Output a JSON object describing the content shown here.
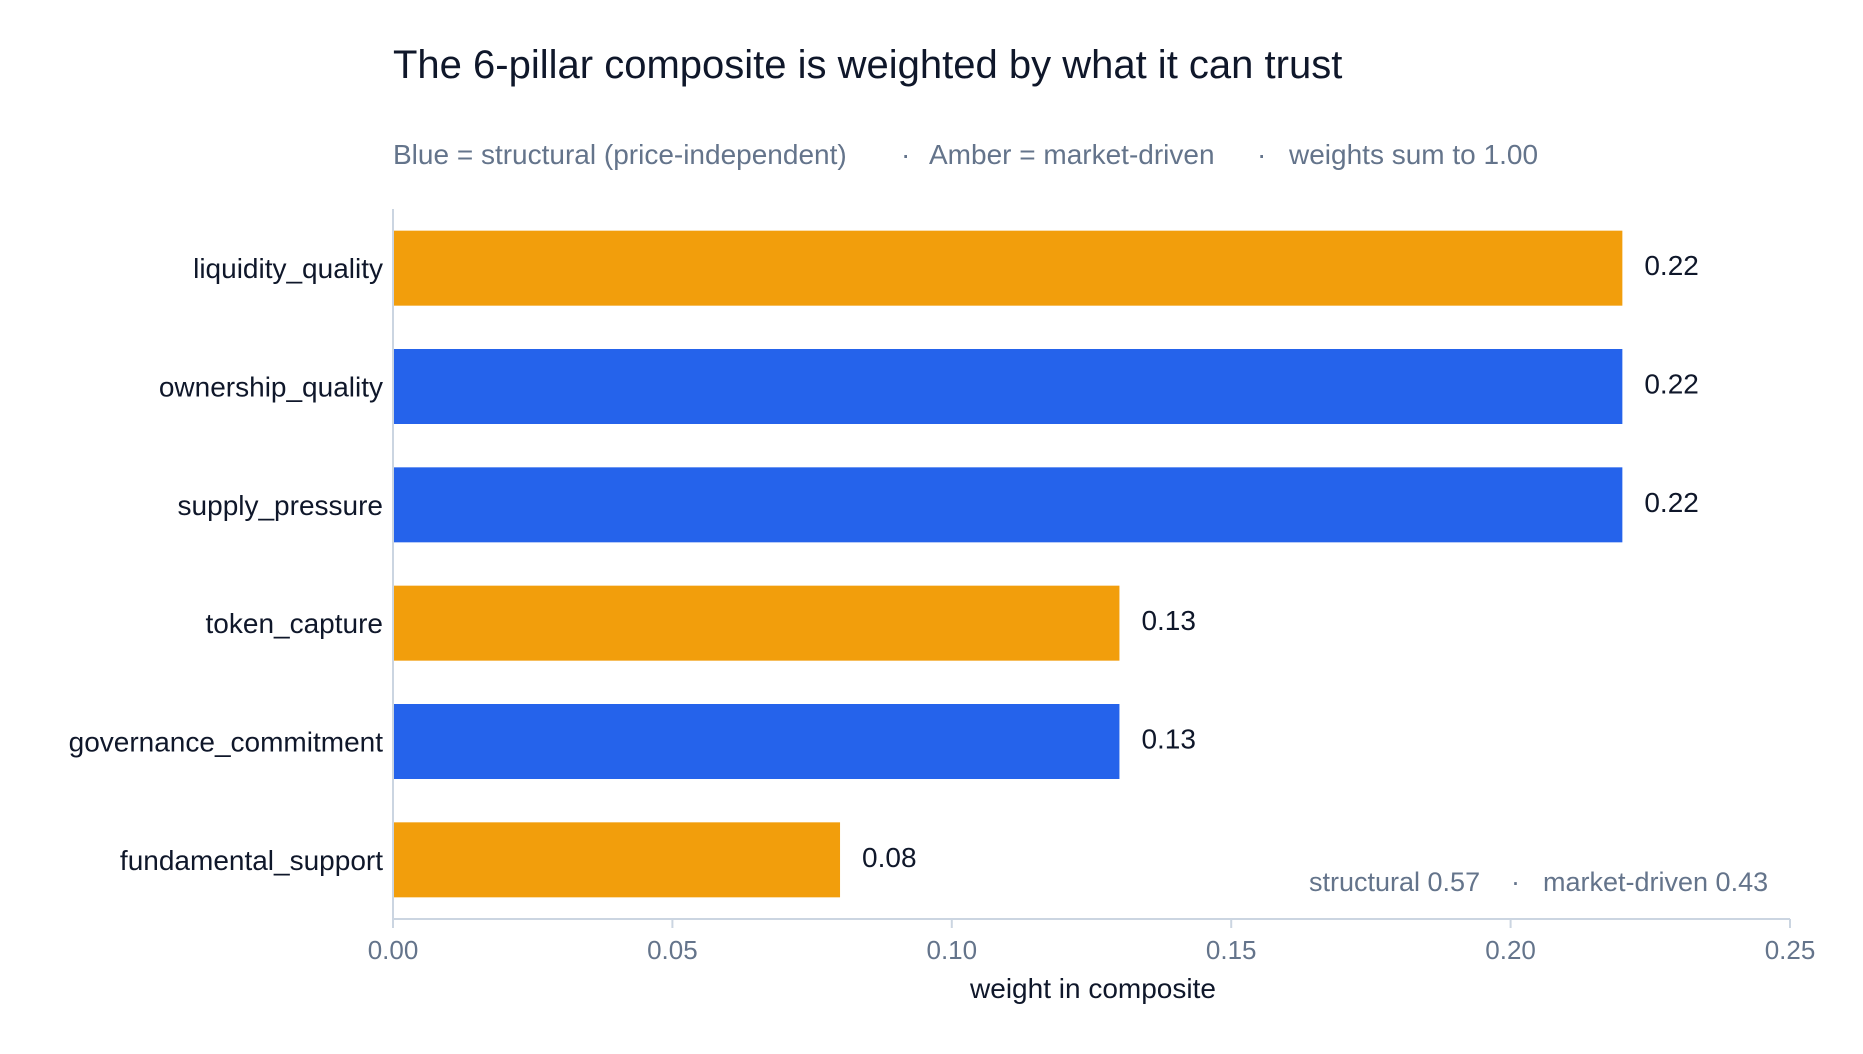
{
  "chart_data": {
    "type": "bar",
    "orientation": "horizontal",
    "title": "The 6-pillar composite is weighted by what it can trust",
    "subtitle": {
      "parts": [
        "Blue = structural (price-independent)",
        "Amber = market-driven",
        "weights sum to 1.00"
      ],
      "separator": "·"
    },
    "categories": [
      "liquidity_quality",
      "ownership_quality",
      "supply_pressure",
      "token_capture",
      "governance_commitment",
      "fundamental_support"
    ],
    "values": [
      0.22,
      0.22,
      0.22,
      0.13,
      0.13,
      0.08
    ],
    "value_labels": [
      "0.22",
      "0.22",
      "0.22",
      "0.13",
      "0.13",
      "0.08"
    ],
    "groups": [
      "market-driven",
      "structural",
      "structural",
      "market-driven",
      "structural",
      "market-driven"
    ],
    "group_colors": {
      "structural": "#2563eb",
      "market-driven": "#f29e0c"
    },
    "xlabel": "weight in composite",
    "ylabel": "",
    "xlim": [
      0,
      0.25
    ],
    "x_ticks": [
      0.0,
      0.05,
      0.1,
      0.15,
      0.2,
      0.25
    ],
    "x_tick_labels": [
      "0.00",
      "0.05",
      "0.10",
      "0.15",
      "0.20",
      "0.25"
    ],
    "grid": false,
    "annotation": {
      "parts": [
        "structural 0.57",
        "market-driven 0.43"
      ],
      "separator": "·",
      "placement": "bottom-right"
    },
    "colors": {
      "axis": "#cbd5e1",
      "text": "#0f172a",
      "muted": "#64748b"
    }
  }
}
